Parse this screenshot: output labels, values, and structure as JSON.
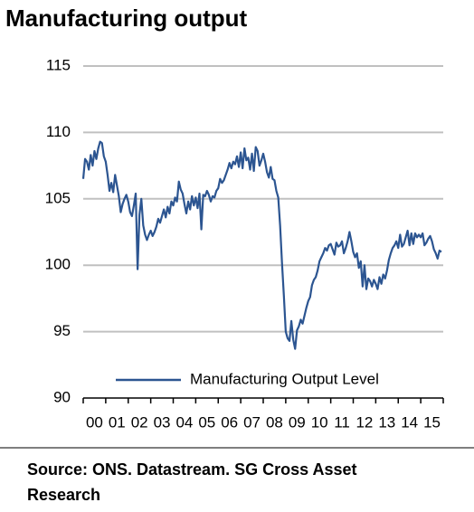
{
  "chart_data": {
    "type": "line",
    "title": "Manufacturing output",
    "source": "Source: ONS. Datastream. SG Cross Asset Research",
    "x": [
      2000,
      2000.083,
      2000.167,
      2000.25,
      2000.333,
      2000.417,
      2000.5,
      2000.583,
      2000.667,
      2000.75,
      2000.833,
      2000.917,
      2001,
      2001.083,
      2001.167,
      2001.25,
      2001.333,
      2001.417,
      2001.5,
      2001.583,
      2001.667,
      2001.75,
      2001.833,
      2001.917,
      2002,
      2002.083,
      2002.167,
      2002.25,
      2002.333,
      2002.417,
      2002.5,
      2002.583,
      2002.667,
      2002.75,
      2002.833,
      2002.917,
      2003,
      2003.083,
      2003.167,
      2003.25,
      2003.333,
      2003.417,
      2003.5,
      2003.583,
      2003.667,
      2003.75,
      2003.833,
      2003.917,
      2004,
      2004.083,
      2004.167,
      2004.25,
      2004.333,
      2004.417,
      2004.5,
      2004.583,
      2004.667,
      2004.75,
      2004.833,
      2004.917,
      2005,
      2005.083,
      2005.167,
      2005.25,
      2005.333,
      2005.417,
      2005.5,
      2005.583,
      2005.667,
      2005.75,
      2005.833,
      2005.917,
      2006,
      2006.083,
      2006.167,
      2006.25,
      2006.333,
      2006.417,
      2006.5,
      2006.583,
      2006.667,
      2006.75,
      2006.833,
      2006.917,
      2007,
      2007.083,
      2007.167,
      2007.25,
      2007.333,
      2007.417,
      2007.5,
      2007.583,
      2007.667,
      2007.75,
      2007.833,
      2007.917,
      2008,
      2008.083,
      2008.167,
      2008.25,
      2008.333,
      2008.417,
      2008.5,
      2008.583,
      2008.667,
      2008.75,
      2008.833,
      2008.917,
      2009,
      2009.083,
      2009.167,
      2009.25,
      2009.333,
      2009.417,
      2009.5,
      2009.583,
      2009.667,
      2009.75,
      2009.833,
      2009.917,
      2010,
      2010.083,
      2010.167,
      2010.25,
      2010.333,
      2010.417,
      2010.5,
      2010.583,
      2010.667,
      2010.75,
      2010.833,
      2010.917,
      2011,
      2011.083,
      2011.167,
      2011.25,
      2011.333,
      2011.417,
      2011.5,
      2011.583,
      2011.667,
      2011.75,
      2011.833,
      2011.917,
      2012,
      2012.083,
      2012.167,
      2012.25,
      2012.333,
      2012.417,
      2012.5,
      2012.583,
      2012.667,
      2012.75,
      2012.833,
      2012.917,
      2013,
      2013.083,
      2013.167,
      2013.25,
      2013.333,
      2013.417,
      2013.5,
      2013.583,
      2013.667,
      2013.75,
      2013.833,
      2013.917,
      2014,
      2014.083,
      2014.167,
      2014.25,
      2014.333,
      2014.417,
      2014.5,
      2014.583,
      2014.667,
      2014.75,
      2014.833,
      2014.917,
      2015,
      2015.083,
      2015.167,
      2015.25,
      2015.333,
      2015.417,
      2015.5,
      2015.583,
      2015.667,
      2015.75,
      2015.833,
      2015.917
    ],
    "series": [
      {
        "name": "Manufacturing Output Level",
        "color": "#2c5591",
        "values": [
          106.5,
          108,
          107.8,
          107.2,
          108.3,
          107.5,
          108.6,
          108,
          108.8,
          109.3,
          109.2,
          108.2,
          107.8,
          106.8,
          105.6,
          106.2,
          105.5,
          106.8,
          106,
          105.2,
          104,
          104.6,
          105,
          105.3,
          104.8,
          104,
          103.7,
          104.5,
          105.4,
          99.7,
          103.8,
          105,
          103,
          102.3,
          101.9,
          102.3,
          102.6,
          102.2,
          102.5,
          102.9,
          103.5,
          103.2,
          103.7,
          104.2,
          103.6,
          104.4,
          103.9,
          104.8,
          104.5,
          105.1,
          104.8,
          106.3,
          105.7,
          105.4,
          104.6,
          103.9,
          104.8,
          104.2,
          105.2,
          104.5,
          105.1,
          104.3,
          105.4,
          102.7,
          105.3,
          105.2,
          105.6,
          105.3,
          104.8,
          105.2,
          105.1,
          105.6,
          105.8,
          106.5,
          106.2,
          106.4,
          106.8,
          107.2,
          107.7,
          107.3,
          107.8,
          107.6,
          108.2,
          107.4,
          108.5,
          107.3,
          108.8,
          107.9,
          108.1,
          107.2,
          108.4,
          107.1,
          108.9,
          108.6,
          107.5,
          107.9,
          108.4,
          107.8,
          107,
          106.6,
          107.4,
          106.5,
          106.4,
          105.6,
          105.1,
          103,
          100.2,
          97.7,
          95,
          94.5,
          94.3,
          95.8,
          94.4,
          93.7,
          95.1,
          95.4,
          95.9,
          95.6,
          96.2,
          96.8,
          97.3,
          97.6,
          98.5,
          98.9,
          99.1,
          99.6,
          100.3,
          100.6,
          100.9,
          101.3,
          101.1,
          101.5,
          101.6,
          101.2,
          100.8,
          101.7,
          101.4,
          101.5,
          101.8,
          100.9,
          101.3,
          101.8,
          102.5,
          101.8,
          101,
          100.6,
          100.9,
          99.8,
          100.3,
          98.4,
          100,
          98.2,
          99,
          98.8,
          98.4,
          98.9,
          98.6,
          98.2,
          99.1,
          98.6,
          99.3,
          99,
          99.6,
          100.4,
          100.9,
          101.3,
          101.5,
          101.8,
          101.3,
          102.3,
          101.4,
          101.6,
          102.1,
          102.6,
          101.5,
          102.4,
          101.6,
          102.4,
          102.1,
          102.3,
          102.1,
          102.4,
          101.5,
          101.7,
          102,
          102.2,
          101.8,
          101.2,
          100.9,
          100.5,
          101.1,
          101
        ]
      }
    ],
    "xlim": [
      2000,
      2016
    ],
    "xticks": [
      {
        "value": 2000,
        "label": "00"
      },
      {
        "value": 2001,
        "label": "01"
      },
      {
        "value": 2002,
        "label": "02"
      },
      {
        "value": 2003,
        "label": "03"
      },
      {
        "value": 2004,
        "label": "04"
      },
      {
        "value": 2005,
        "label": "05"
      },
      {
        "value": 2006,
        "label": "06"
      },
      {
        "value": 2007,
        "label": "07"
      },
      {
        "value": 2008,
        "label": "08"
      },
      {
        "value": 2009,
        "label": "09"
      },
      {
        "value": 2010,
        "label": "10"
      },
      {
        "value": 2011,
        "label": "11"
      },
      {
        "value": 2012,
        "label": "12"
      },
      {
        "value": 2013,
        "label": "13"
      },
      {
        "value": 2014,
        "label": "14"
      },
      {
        "value": 2015,
        "label": "15"
      }
    ],
    "ylim": [
      90,
      115
    ],
    "yticks": [
      90,
      95,
      100,
      105,
      110,
      115
    ],
    "grid": true,
    "legend": "bottom"
  }
}
